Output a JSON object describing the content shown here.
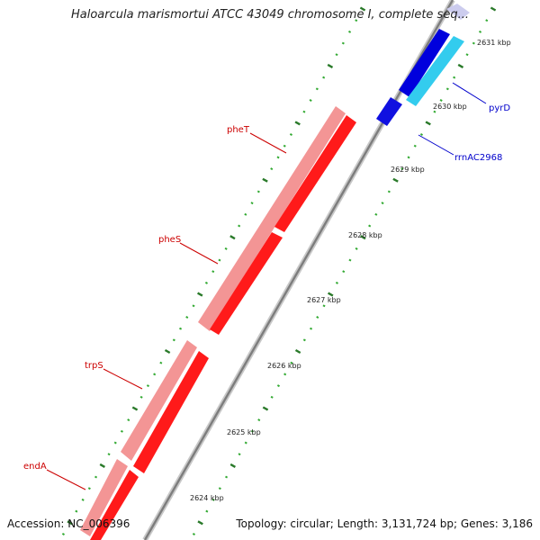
{
  "title": "Haloarcula marismortui ATCC 43049 chromosome I, complete seq...",
  "footer": {
    "accession": "Accession: NC_006396",
    "summary": "Topology: circular; Length: 3,131,724 bp; Genes: 3,186"
  },
  "colors": {
    "backbone": "#9a9a9a",
    "forward_gene": "#f08a8a",
    "reverse_gene": "#ff0000",
    "blue_gene": "#0000dd",
    "cyan_gene": "#33ccee",
    "rrna_highlight": "#ccccee",
    "tick_major": "#2a7a2a",
    "tick_minor": "#33aa33",
    "red_label": "#cc0000",
    "blue_label": "#0000cc"
  },
  "scale_labels": [
    "2624 kbp",
    "2625 kbp",
    "2626 kbp",
    "2627 kbp",
    "2628 kbp",
    "2629 kbp",
    "2630 kbp",
    "2631 kbp"
  ],
  "gene_labels": [
    {
      "name": "endA",
      "color": "red"
    },
    {
      "name": "trpS",
      "color": "red"
    },
    {
      "name": "pheS",
      "color": "red"
    },
    {
      "name": "pheT",
      "color": "red"
    },
    {
      "name": "rrnAC2968",
      "color": "blue"
    },
    {
      "name": "pyrD",
      "color": "blue"
    }
  ]
}
